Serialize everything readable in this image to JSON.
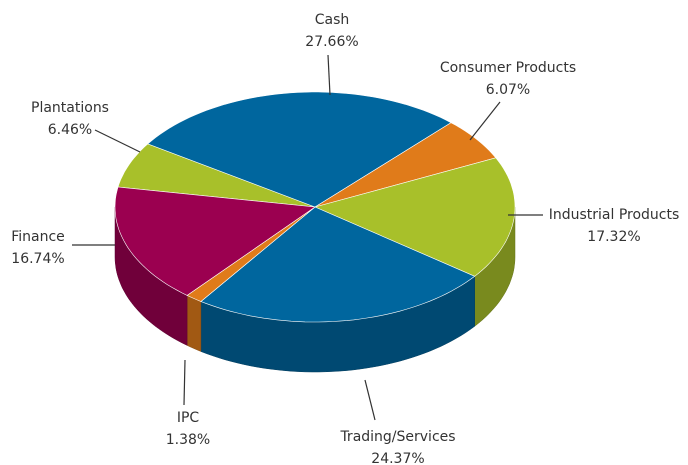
{
  "chart_data": {
    "type": "pie",
    "categories": [
      "Plantations",
      "Cash",
      "Consumer Products",
      "Industrial Products",
      "Trading/Services",
      "IPC",
      "Finance"
    ],
    "values": [
      6.46,
      27.66,
      6.07,
      17.32,
      24.37,
      1.38,
      16.74
    ],
    "value_labels": [
      "6.46%",
      "27.66%",
      "6.07%",
      "17.32%",
      "24.37%",
      "1.38%",
      "16.74%"
    ],
    "colors": [
      "#a8c02a",
      "#00669e",
      "#e07b1a",
      "#a8c02a",
      "#00669e",
      "#e07b1a",
      "#9b0050"
    ]
  }
}
